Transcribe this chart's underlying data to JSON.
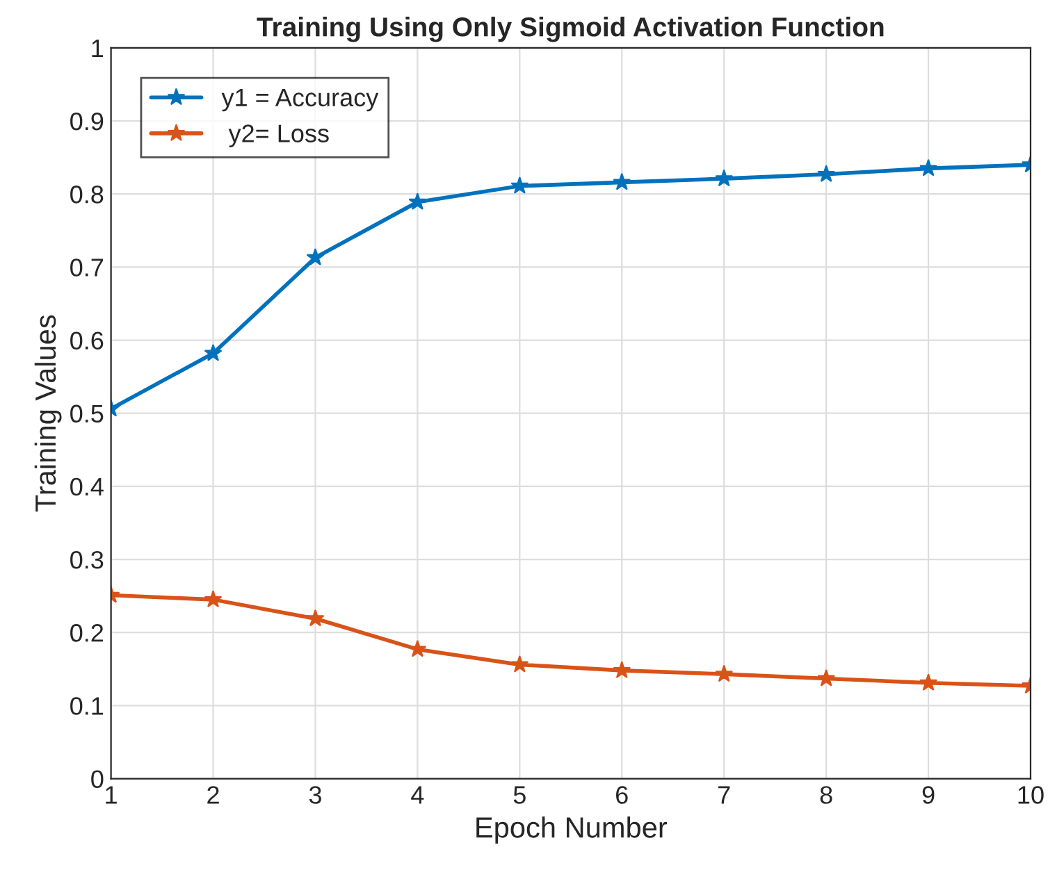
{
  "chart_data": {
    "type": "line",
    "title": "Training Using Only Sigmoid Activation Function",
    "xlabel": "Epoch Number",
    "ylabel": "Training Values",
    "x": [
      1,
      2,
      3,
      4,
      5,
      6,
      7,
      8,
      9,
      10
    ],
    "series": [
      {
        "name": "y1 = Accuracy",
        "color": "#0072bd",
        "values": [
          0.506,
          0.582,
          0.713,
          0.789,
          0.811,
          0.816,
          0.821,
          0.827,
          0.835,
          0.84
        ]
      },
      {
        "name": " y2= Loss",
        "color": "#d95319",
        "values": [
          0.251,
          0.245,
          0.219,
          0.177,
          0.156,
          0.148,
          0.143,
          0.137,
          0.131,
          0.127
        ]
      }
    ],
    "xlim": [
      1,
      10
    ],
    "xticks": [
      1,
      2,
      3,
      4,
      5,
      6,
      7,
      8,
      9,
      10
    ],
    "ylim": [
      0,
      1
    ],
    "yticks": [
      0,
      0.1,
      0.2,
      0.3,
      0.4,
      0.5,
      0.6,
      0.7,
      0.8,
      0.9,
      1
    ],
    "grid": true,
    "legend": "top left",
    "marker": "star",
    "line_style": "solid"
  }
}
